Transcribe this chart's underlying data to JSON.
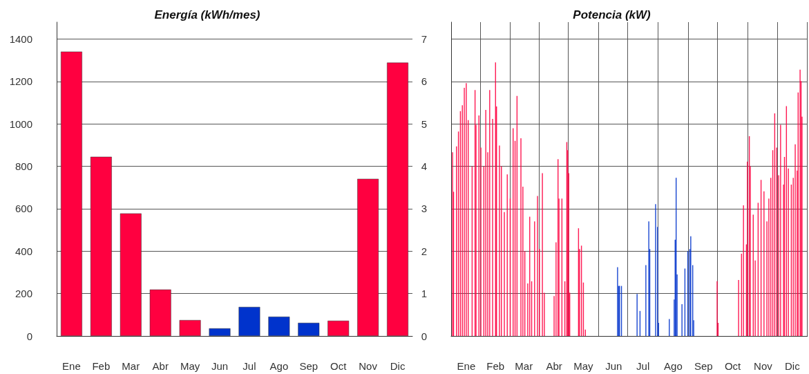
{
  "chart_data": [
    {
      "type": "bar",
      "title": "Energía (kWh/mes)",
      "categories": [
        "Ene",
        "Feb",
        "Mar",
        "Abr",
        "May",
        "Jun",
        "Jul",
        "Ago",
        "Sep",
        "Oct",
        "Nov",
        "Dic"
      ],
      "values": [
        1341,
        845,
        578,
        219,
        75,
        36,
        137,
        91,
        62,
        72,
        741,
        1289
      ],
      "colors": [
        "#ff0040",
        "#ff0040",
        "#ff0040",
        "#ff0040",
        "#ff0040",
        "#0033cc",
        "#0033cc",
        "#0033cc",
        "#0033cc",
        "#ff0040",
        "#ff0040",
        "#ff0040"
      ],
      "ylim": [
        0,
        1480
      ],
      "yticks": [
        0,
        200,
        400,
        600,
        800,
        1000,
        1200,
        1400
      ],
      "grid": "y"
    },
    {
      "type": "bar",
      "title": "Potencia (kW)",
      "categories": [
        null,
        null,
        null,
        null,
        null,
        null,
        null,
        null,
        null,
        null,
        null,
        null,
        null,
        null,
        null,
        "Ene",
        null,
        null,
        null,
        null,
        null,
        null,
        null,
        null,
        null,
        null,
        null,
        null,
        null,
        null,
        null,
        null,
        null,
        null,
        null,
        null,
        null,
        null,
        null,
        null,
        null,
        null,
        null,
        null,
        null,
        "Feb",
        null,
        null,
        null,
        null,
        null,
        null,
        null,
        null,
        null,
        null,
        null,
        null,
        null,
        null,
        null,
        null,
        null,
        null,
        null,
        null,
        null,
        null,
        null,
        null,
        null,
        null,
        null,
        null,
        "Mar",
        null,
        null,
        null,
        null,
        null,
        null,
        null,
        null,
        null,
        null,
        null,
        null,
        null,
        null,
        null,
        null,
        null,
        null,
        null,
        null,
        null,
        null,
        null,
        null,
        null,
        null,
        null,
        null,
        null,
        null,
        "Abr",
        null,
        null,
        null,
        null,
        null,
        null,
        null,
        null,
        null,
        null,
        null,
        null,
        null,
        null,
        null,
        null,
        null,
        null,
        null,
        null,
        null,
        null,
        null,
        null,
        null,
        null,
        null,
        null,
        null,
        "May",
        null,
        null,
        null,
        null,
        null,
        null,
        null,
        null,
        null,
        null,
        null,
        null,
        null,
        null,
        null,
        null,
        null,
        null,
        null,
        null,
        null,
        null,
        null,
        null,
        null,
        null,
        null,
        null,
        null,
        null,
        "Jun",
        null,
        null,
        null,
        null,
        null,
        null,
        null,
        null,
        null,
        null,
        null,
        null,
        null,
        null,
        null,
        null,
        null,
        null,
        null,
        null,
        null,
        null,
        null,
        null,
        null,
        null,
        null,
        null,
        null,
        "Jul",
        null,
        null,
        null,
        null,
        null,
        null,
        null,
        null,
        null,
        null,
        null,
        null,
        null,
        null,
        null,
        null,
        null,
        null,
        null,
        null,
        null,
        null,
        null,
        null,
        null,
        null,
        null,
        null,
        null,
        null,
        "Ago",
        null,
        null,
        null,
        null,
        null,
        null,
        null,
        null,
        null,
        null,
        null,
        null,
        null,
        null,
        null,
        null,
        null,
        null,
        null,
        null,
        null,
        null,
        null,
        null,
        null,
        null,
        null,
        null,
        null,
        null,
        "Sep",
        null,
        null,
        null,
        null,
        null,
        null,
        null,
        null,
        null,
        null,
        null,
        null,
        null,
        null,
        null,
        null,
        null,
        null,
        null,
        null,
        null,
        null,
        null,
        null,
        null,
        null,
        null,
        null,
        null,
        "Oct",
        null,
        null,
        null,
        null,
        null,
        null,
        null,
        null,
        null,
        null,
        null,
        null,
        null,
        null,
        null,
        null,
        null,
        null,
        null,
        null,
        null,
        null,
        null,
        null,
        null,
        null,
        null,
        null,
        null,
        null,
        "Nov",
        null,
        null,
        null,
        null,
        null,
        null,
        null,
        null,
        null,
        null,
        null,
        null,
        null,
        null,
        null,
        null,
        null,
        null,
        null,
        null,
        null,
        null,
        null,
        null,
        null,
        null,
        null,
        null,
        null,
        "Dic",
        null,
        null,
        null,
        null,
        null,
        null,
        null,
        null,
        null,
        null,
        null,
        null,
        null,
        null,
        null
      ],
      "ylim": [
        0,
        7.4
      ],
      "yticks": [
        0,
        1,
        2,
        3,
        4,
        5,
        6,
        7
      ],
      "grid": true,
      "series": [
        {
          "color": "#ff0040",
          "values": [
            null,
            4.33,
            3.4,
            null,
            null,
            4.47,
            null,
            4.82,
            null,
            5.3,
            null,
            5.44,
            null,
            5.85,
            null,
            5.96,
            null,
            5.09,
            null,
            null,
            null,
            4.0,
            null,
            null,
            5.8,
            4.98,
            null,
            null,
            5.2,
            null,
            4.44,
            null,
            null,
            4.0,
            null,
            5.33,
            null,
            4.33,
            null,
            5.8,
            null,
            null,
            5.12,
            null,
            null,
            6.45,
            5.41,
            null,
            null,
            4.49,
            null,
            4.0,
            null,
            null,
            2.92,
            null,
            null,
            3.81,
            null,
            null,
            3.24,
            null,
            null,
            4.9,
            null,
            4.6,
            null,
            5.66,
            null,
            null,
            null,
            4.66,
            null,
            3.52,
            null,
            2.0,
            null,
            null,
            1.24,
            null,
            2.81,
            null,
            1.29,
            null,
            null,
            2.7,
            null,
            null,
            3.3,
            null,
            2.05,
            null,
            null,
            3.84,
            null,
            1.02,
            null,
            null,
            null,
            null,
            null,
            null,
            null,
            null,
            null,
            0.94,
            null,
            2.21,
            null,
            4.17,
            3.24,
            null,
            null,
            3.24,
            null,
            null,
            1.29,
            null,
            4.57,
            4.38,
            3.84,
            1.02,
            null,
            null,
            null,
            null,
            null,
            null,
            null,
            null,
            2.54,
            2.05,
            null,
            2.13,
            null,
            1.26,
            null,
            0.15,
            null,
            null,
            null,
            null,
            null,
            null,
            null,
            null,
            null,
            null,
            null,
            null,
            null,
            null,
            null,
            null,
            null,
            null,
            null,
            null,
            null,
            null,
            null,
            null,
            null,
            null,
            null,
            null,
            null,
            null,
            null,
            null,
            null,
            null,
            null,
            null,
            null,
            null,
            null,
            null,
            null,
            null,
            null,
            null,
            null,
            null,
            null,
            null,
            null,
            null,
            null,
            null,
            null,
            null,
            null,
            null,
            null,
            null,
            null,
            null,
            null,
            null,
            null,
            null,
            null,
            null,
            null,
            null,
            null,
            null,
            null,
            null,
            null,
            null,
            null,
            null,
            null,
            null,
            null,
            null,
            null,
            null,
            null,
            null,
            null,
            null,
            null,
            null,
            null,
            null,
            null,
            null,
            null,
            null,
            null,
            null,
            null,
            null,
            null,
            null,
            null,
            null,
            null,
            null,
            null,
            null,
            null,
            null,
            null,
            null,
            null,
            null,
            null,
            null,
            null,
            null,
            null,
            null,
            null,
            null,
            null,
            null,
            null,
            null,
            null,
            null,
            null,
            null,
            null,
            null,
            null,
            null,
            null,
            null,
            1.29,
            0.31,
            null,
            null,
            null,
            null,
            null,
            null,
            null,
            null,
            null,
            null,
            null,
            null,
            null,
            null,
            null,
            null,
            null,
            null,
            null,
            null,
            1.32,
            null,
            null,
            1.94,
            null,
            3.08,
            null,
            null,
            2.16,
            4.11,
            null,
            4.71,
            4.0,
            null,
            null,
            2.86,
            null,
            1.78,
            null,
            null,
            3.14,
            null,
            null,
            3.68,
            null,
            null,
            3.41,
            null,
            null,
            2.7,
            null,
            3.24,
            null,
            3.73,
            null,
            4.38,
            null,
            5.25,
            null,
            4.44,
            null,
            3.79,
            null,
            4.98,
            null,
            null,
            3.57,
            4.22,
            null,
            5.42,
            null,
            3.95,
            null,
            null,
            3.57,
            null,
            3.73,
            null,
            4.52,
            null,
            3.9,
            5.74,
            null,
            6.28,
            6.01,
            5.17,
            null,
            null,
            null,
            null,
            null
          ]
        },
        {
          "color": "#0033cc",
          "values": [
            null,
            null,
            null,
            null,
            null,
            null,
            null,
            null,
            null,
            null,
            null,
            null,
            null,
            null,
            null,
            null,
            null,
            null,
            null,
            null,
            null,
            null,
            null,
            null,
            null,
            null,
            null,
            null,
            null,
            null,
            null,
            null,
            null,
            null,
            null,
            null,
            null,
            null,
            null,
            null,
            null,
            null,
            null,
            null,
            null,
            null,
            null,
            null,
            null,
            null,
            null,
            null,
            null,
            null,
            null,
            null,
            null,
            null,
            null,
            null,
            null,
            null,
            null,
            null,
            null,
            null,
            null,
            null,
            null,
            null,
            null,
            null,
            null,
            null,
            null,
            null,
            null,
            null,
            null,
            null,
            null,
            null,
            null,
            null,
            null,
            null,
            null,
            null,
            null,
            null,
            null,
            null,
            null,
            null,
            null,
            null,
            null,
            null,
            null,
            null,
            null,
            null,
            null,
            null,
            null,
            null,
            null,
            null,
            null,
            null,
            null,
            null,
            null,
            null,
            null,
            null,
            null,
            null,
            null,
            null,
            null,
            null,
            null,
            null,
            null,
            null,
            null,
            null,
            null,
            null,
            null,
            null,
            null,
            null,
            null,
            null,
            null,
            null,
            null,
            null,
            null,
            null,
            null,
            null,
            null,
            null,
            null,
            null,
            null,
            null,
            null,
            null,
            null,
            null,
            null,
            null,
            null,
            null,
            null,
            null,
            null,
            null,
            null,
            null,
            null,
            null,
            null,
            null,
            null,
            null,
            1.62,
            1.18,
            1.18,
            null,
            1.18,
            null,
            null,
            null,
            null,
            null,
            null,
            null,
            null,
            null,
            null,
            null,
            null,
            null,
            null,
            null,
            0.99,
            null,
            null,
            0.59,
            null,
            null,
            null,
            null,
            null,
            1.67,
            null,
            null,
            2.7,
            2.05,
            null,
            null,
            null,
            null,
            null,
            3.11,
            null,
            2.57,
            0.31,
            null,
            null,
            null,
            null,
            null,
            null,
            null,
            null,
            null,
            null,
            0.4,
            null,
            null,
            null,
            null,
            0.86,
            2.27,
            3.73,
            1.45,
            null,
            null,
            null,
            null,
            0.75,
            null,
            null,
            1.59,
            null,
            null,
            2.0,
            null,
            2.05,
            2.35,
            null,
            1.67,
            0.37,
            null,
            null,
            null,
            null,
            null,
            null,
            null,
            null,
            null,
            null,
            null,
            null,
            null,
            null,
            null,
            null,
            null,
            null,
            null,
            null,
            null,
            null,
            null,
            null,
            null,
            null,
            null,
            null,
            null,
            null,
            null,
            null,
            null,
            null,
            null,
            null,
            null,
            null,
            null,
            null,
            null,
            null,
            null,
            null,
            null,
            null,
            null,
            null,
            null,
            null,
            null,
            null,
            null,
            null,
            null,
            null,
            null,
            null,
            null,
            null,
            null,
            null,
            null,
            null,
            null,
            null,
            null,
            null,
            null,
            null,
            null,
            null,
            null,
            null,
            null,
            null,
            null,
            null,
            null,
            null,
            null,
            null,
            null,
            null,
            null,
            null,
            null,
            null,
            null,
            null,
            null,
            null,
            null,
            null,
            null,
            null,
            null,
            null,
            null,
            null,
            null,
            null,
            null,
            null,
            null,
            null,
            null,
            null,
            null,
            null,
            null,
            null,
            null,
            null,
            null,
            null
          ]
        }
      ]
    }
  ]
}
